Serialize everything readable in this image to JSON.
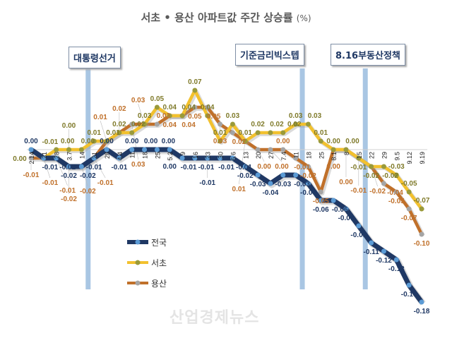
{
  "title": "서초 • 용산 아파트값 주간 상승률",
  "title_unit": "(%)",
  "events": [
    {
      "label": "대통령선거",
      "category_index": 4.5
    },
    {
      "label": "기준금리빅스텝",
      "category_index": 21.5
    },
    {
      "label": "8.16부동산정책",
      "category_index": 26.5
    }
  ],
  "watermark": "산업경제뉴스",
  "chart_data": {
    "type": "line",
    "title": "서초 • 용산 아파트값 주간 상승률 (%)",
    "categories": [
      "2.14",
      "21",
      "28",
      "3.7",
      "14",
      "21",
      "28",
      "4.4",
      "11",
      "18",
      "25",
      "5.2",
      "9",
      "16",
      "23",
      "30",
      "6.6",
      "13",
      "20",
      "27",
      "7.4",
      "11",
      "18",
      "25",
      "8.1",
      "8",
      "15",
      "22",
      "29",
      "9.5",
      "9.12",
      "9.19"
    ],
    "ylim": [
      -0.2,
      0.08
    ],
    "grid": false,
    "legend": "bottom-left",
    "series": [
      {
        "name": "전국",
        "color": "#1f3864",
        "marker": "#5b9bd5",
        "label_color": "#1f3864",
        "values": [
          0.0,
          -0.01,
          -0.01,
          -0.02,
          -0.02,
          -0.01,
          0.0,
          -0.01,
          0.0,
          0.0,
          0.0,
          0.0,
          -0.01,
          -0.01,
          -0.01,
          -0.01,
          -0.01,
          -0.02,
          -0.03,
          -0.04,
          -0.03,
          -0.03,
          -0.04,
          -0.06,
          -0.06,
          -0.07,
          -0.09,
          -0.11,
          -0.12,
          -0.13,
          -0.16,
          -0.18
        ]
      },
      {
        "name": "서초",
        "color": "#f2c12e",
        "marker": "#9a9a3a",
        "label_color": "#7f7a2a",
        "values": [
          0.0,
          -0.01,
          0.0,
          0.0,
          0.0,
          0.01,
          0.01,
          0.02,
          0.02,
          0.03,
          0.05,
          0.04,
          0.04,
          0.07,
          0.04,
          0.01,
          0.03,
          0.01,
          0.02,
          0.02,
          0.02,
          0.03,
          0.03,
          0.01,
          0.0,
          0.0,
          -0.01,
          -0.02,
          -0.02,
          -0.03,
          -0.05,
          -0.07
        ]
      },
      {
        "name": "용산",
        "color": "#c0702a",
        "marker": "#a5a5a5",
        "label_color": "#c0702a",
        "values": [
          -0.01,
          -0.01,
          -0.01,
          -0.02,
          -0.02,
          -0.01,
          0.01,
          0.02,
          0.03,
          0.03,
          0.03,
          0.04,
          0.04,
          0.05,
          0.05,
          0.03,
          0.02,
          0.01,
          0.0,
          0.0,
          0.0,
          -0.01,
          -0.02,
          -0.05,
          0.0,
          0.0,
          -0.01,
          -0.02,
          -0.04,
          -0.05,
          -0.07,
          -0.1
        ]
      }
    ]
  }
}
